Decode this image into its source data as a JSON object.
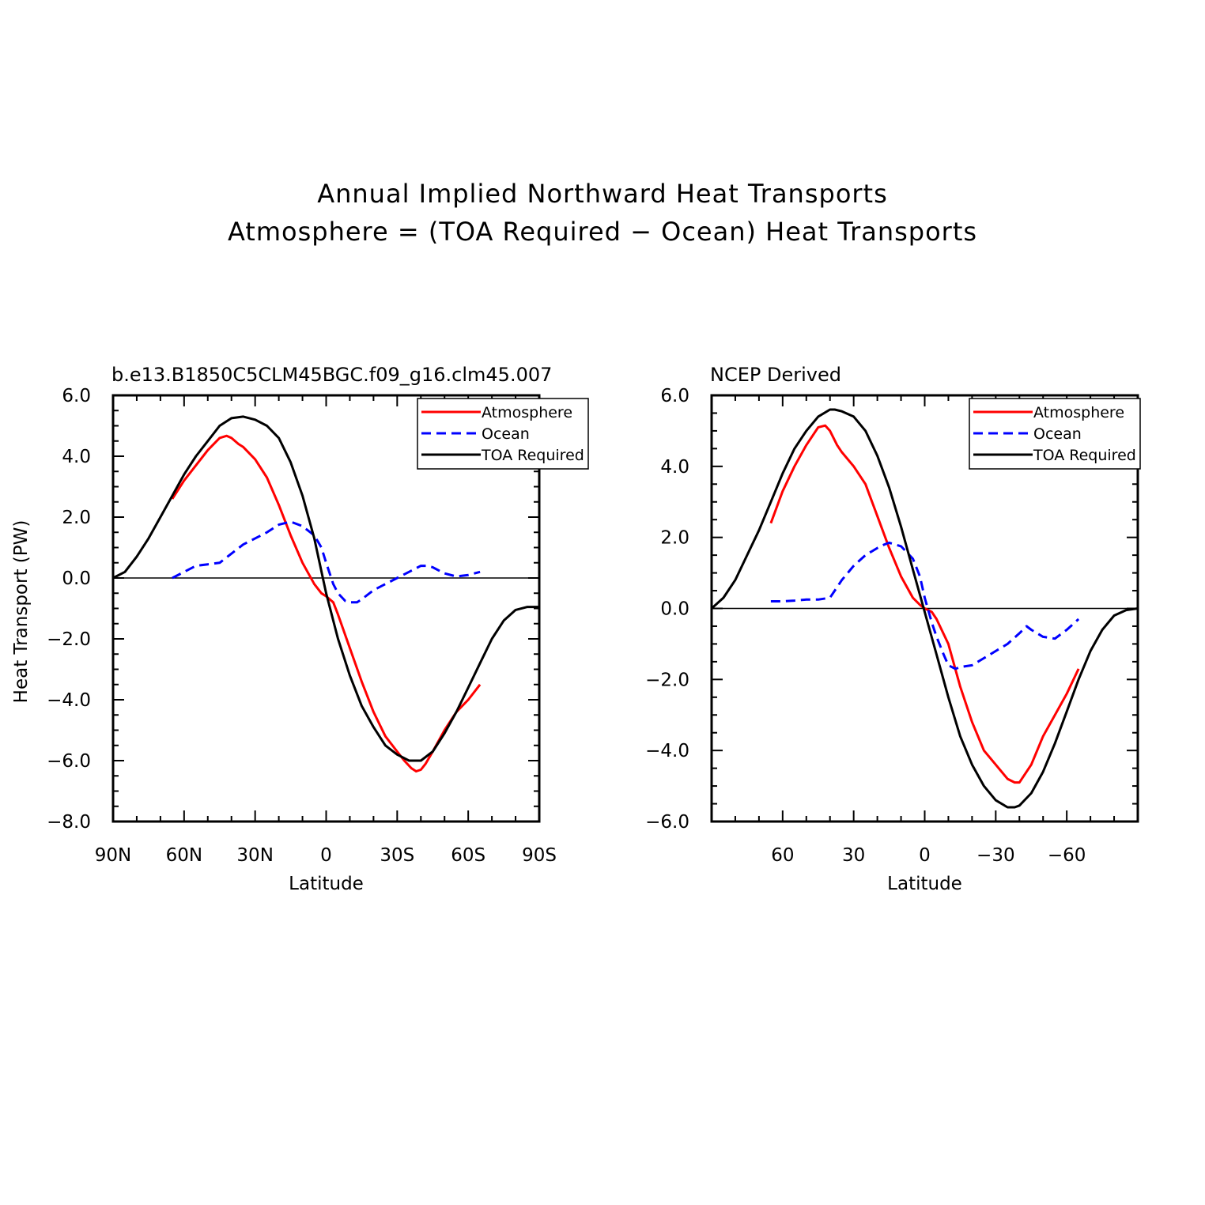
{
  "figure": {
    "title_line1": "Annual Implied Northward Heat Transports",
    "title_line2": "Atmosphere = (TOA Required − Ocean) Heat Transports"
  },
  "chart_data": [
    {
      "type": "line",
      "title": "b.e13.B1850C5CLM45BGC.f09_g16.clm45.007",
      "xlabel": "Latitude",
      "ylabel": "Heat Transport (PW)",
      "xlim": [
        90,
        -90
      ],
      "ylim": [
        -8,
        6
      ],
      "x_ticks": [
        90,
        60,
        30,
        0,
        -30,
        -60,
        -90
      ],
      "x_tick_labels": [
        "90N",
        "60N",
        "30N",
        "0",
        "30S",
        "60S",
        "90S"
      ],
      "y_ticks": [
        6,
        4,
        2,
        0,
        -2,
        -4,
        -6,
        -8
      ],
      "y_tick_labels": [
        "6.0",
        "4.0",
        "2.0",
        "0.0",
        "−2.0",
        "−4.0",
        "−6.0",
        "−8.0"
      ],
      "zero_line": true,
      "legend": "top-right",
      "series": [
        {
          "name": "Atmosphere",
          "color": "#ff0000",
          "dash": "solid",
          "x": [
            65,
            60,
            55,
            50,
            45,
            42,
            40,
            37,
            35,
            30,
            25,
            20,
            15,
            10,
            5,
            2,
            0,
            -3,
            -5,
            -10,
            -15,
            -20,
            -25,
            -30,
            -33,
            -36,
            -38,
            -40,
            -42,
            -45,
            -50,
            -55,
            -60,
            -65
          ],
          "y": [
            2.6,
            3.2,
            3.7,
            4.2,
            4.6,
            4.67,
            4.6,
            4.4,
            4.3,
            3.9,
            3.3,
            2.4,
            1.4,
            0.5,
            -0.2,
            -0.5,
            -0.6,
            -0.8,
            -1.2,
            -2.3,
            -3.4,
            -4.4,
            -5.2,
            -5.7,
            -6.0,
            -6.25,
            -6.35,
            -6.3,
            -6.1,
            -5.7,
            -5.0,
            -4.4,
            -4.0,
            -3.5
          ]
        },
        {
          "name": "Ocean",
          "color": "#0000ff",
          "dash": "dashed",
          "x": [
            65,
            60,
            55,
            50,
            45,
            40,
            35,
            30,
            25,
            20,
            15,
            10,
            5,
            2,
            0,
            -3,
            -5,
            -8,
            -10,
            -13,
            -15,
            -20,
            -25,
            -30,
            -35,
            -40,
            -43,
            -45,
            -50,
            -55,
            -60,
            -65
          ],
          "y": [
            0.0,
            0.2,
            0.4,
            0.45,
            0.5,
            0.8,
            1.1,
            1.3,
            1.5,
            1.75,
            1.85,
            1.7,
            1.4,
            1.0,
            0.5,
            -0.2,
            -0.5,
            -0.75,
            -0.8,
            -0.8,
            -0.7,
            -0.4,
            -0.2,
            0.0,
            0.2,
            0.4,
            0.4,
            0.35,
            0.15,
            0.05,
            0.1,
            0.2
          ]
        },
        {
          "name": "TOA Required",
          "color": "#000000",
          "dash": "solid",
          "x": [
            90,
            85,
            80,
            75,
            70,
            65,
            60,
            55,
            50,
            45,
            40,
            35,
            30,
            25,
            20,
            15,
            10,
            5,
            0,
            -5,
            -10,
            -15,
            -20,
            -25,
            -30,
            -35,
            -38,
            -40,
            -45,
            -50,
            -55,
            -60,
            -65,
            -70,
            -75,
            -80,
            -85,
            -90
          ],
          "y": [
            0.0,
            0.2,
            0.7,
            1.3,
            2.0,
            2.7,
            3.4,
            4.0,
            4.5,
            5.0,
            5.25,
            5.3,
            5.2,
            5.0,
            4.6,
            3.8,
            2.7,
            1.3,
            -0.5,
            -2.0,
            -3.2,
            -4.2,
            -4.9,
            -5.5,
            -5.8,
            -6.0,
            -6.0,
            -6.0,
            -5.7,
            -5.1,
            -4.4,
            -3.6,
            -2.8,
            -2.0,
            -1.4,
            -1.05,
            -0.95,
            -0.95
          ]
        }
      ]
    },
    {
      "type": "line",
      "title": "NCEP Derived",
      "xlabel": "Latitude",
      "ylabel": "",
      "xlim": [
        90,
        -90
      ],
      "ylim": [
        -6,
        6
      ],
      "x_ticks": [
        60,
        30,
        0,
        -30,
        -60
      ],
      "x_tick_labels": [
        "60",
        "30",
        "0",
        "−30",
        "−60"
      ],
      "y_ticks": [
        6,
        4,
        2,
        0,
        -2,
        -4,
        -6
      ],
      "y_tick_labels": [
        "6.0",
        "4.0",
        "2.0",
        "0.0",
        "−2.0",
        "−4.0",
        "−6.0"
      ],
      "zero_line": true,
      "legend": "top-right",
      "series": [
        {
          "name": "Atmosphere",
          "color": "#ff0000",
          "dash": "solid",
          "x": [
            65,
            60,
            55,
            50,
            45,
            42,
            40,
            37,
            35,
            30,
            25,
            20,
            15,
            10,
            5,
            2,
            0,
            -3,
            -5,
            -10,
            -15,
            -20,
            -25,
            -30,
            -35,
            -38,
            -40,
            -42,
            -45,
            -50,
            -55,
            -60,
            -65
          ],
          "y": [
            2.4,
            3.3,
            4.0,
            4.6,
            5.1,
            5.15,
            5.0,
            4.6,
            4.4,
            4.0,
            3.5,
            2.6,
            1.7,
            0.9,
            0.3,
            0.1,
            0.0,
            -0.1,
            -0.3,
            -1.0,
            -2.2,
            -3.2,
            -4.0,
            -4.4,
            -4.8,
            -4.9,
            -4.9,
            -4.7,
            -4.4,
            -3.6,
            -3.0,
            -2.4,
            -1.7
          ]
        },
        {
          "name": "Ocean",
          "color": "#0000ff",
          "dash": "dashed",
          "x": [
            65,
            60,
            55,
            50,
            45,
            40,
            35,
            30,
            25,
            20,
            17,
            15,
            10,
            5,
            2,
            0,
            -3,
            -5,
            -8,
            -10,
            -13,
            -15,
            -20,
            -25,
            -30,
            -35,
            -40,
            -43,
            -45,
            -50,
            -55,
            -60,
            -65
          ],
          "y": [
            0.2,
            0.2,
            0.22,
            0.25,
            0.25,
            0.3,
            0.8,
            1.2,
            1.5,
            1.7,
            1.8,
            1.85,
            1.75,
            1.4,
            0.9,
            0.3,
            -0.4,
            -0.8,
            -1.3,
            -1.6,
            -1.7,
            -1.65,
            -1.6,
            -1.4,
            -1.2,
            -1.0,
            -0.7,
            -0.5,
            -0.6,
            -0.8,
            -0.85,
            -0.6,
            -0.3
          ]
        },
        {
          "name": "TOA Required",
          "color": "#000000",
          "dash": "solid",
          "x": [
            90,
            85,
            80,
            75,
            70,
            65,
            60,
            55,
            50,
            45,
            40,
            38,
            35,
            30,
            25,
            20,
            15,
            10,
            5,
            0,
            -5,
            -10,
            -15,
            -20,
            -25,
            -30,
            -35,
            -38,
            -40,
            -45,
            -50,
            -55,
            -60,
            -65,
            -70,
            -75,
            -80,
            -85,
            -90
          ],
          "y": [
            0.0,
            0.3,
            0.8,
            1.5,
            2.2,
            3.0,
            3.8,
            4.5,
            5.0,
            5.4,
            5.6,
            5.6,
            5.55,
            5.4,
            5.0,
            4.3,
            3.4,
            2.3,
            1.1,
            -0.1,
            -1.3,
            -2.5,
            -3.6,
            -4.4,
            -5.0,
            -5.4,
            -5.6,
            -5.6,
            -5.55,
            -5.2,
            -4.6,
            -3.8,
            -2.9,
            -2.0,
            -1.2,
            -0.6,
            -0.2,
            -0.05,
            0.0
          ]
        }
      ]
    }
  ]
}
